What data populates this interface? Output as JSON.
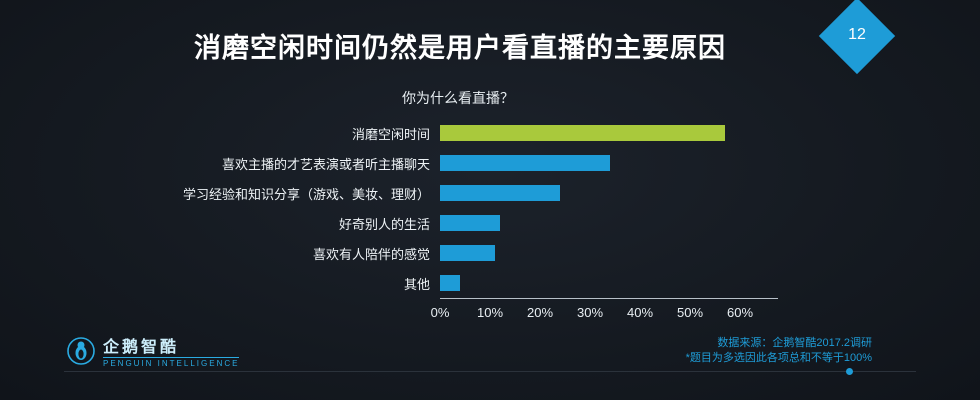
{
  "page": {
    "number": "12"
  },
  "header": {
    "title": "消磨空闲时间仍然是用户看直播的主要原因"
  },
  "chart_data": {
    "type": "bar",
    "orientation": "horizontal",
    "title": "你为什么看直播？",
    "categories": [
      "消磨空闲时间",
      "喜欢主播的才艺表演或者听主播聊天",
      "学习经验和知识分享（游戏、美妆、理财）",
      "好奇别人的生活",
      "喜欢有人陪伴的感觉",
      "其他"
    ],
    "values": [
      57,
      34,
      24,
      12,
      11,
      4
    ],
    "bar_colors": [
      "#a9c93c",
      "#1e9cd7",
      "#1e9cd7",
      "#1e9cd7",
      "#1e9cd7",
      "#1e9cd7"
    ],
    "xlim": [
      0,
      60
    ],
    "xticks": [
      "0%",
      "10%",
      "20%",
      "30%",
      "40%",
      "50%",
      "60%"
    ],
    "grid": false,
    "legend": "none"
  },
  "footer": {
    "source": "数据来源：企鹅智酷2017.2调研",
    "note": "*题目为多选因此各项总和不等于100%",
    "logo_text": "企鹅智酷",
    "logo_subtext": "PENGUIN INTELLIGENCE"
  },
  "colors": {
    "background": "#151a21",
    "accent_blue": "#1e9cd7",
    "highlight_green": "#a9c93c"
  }
}
